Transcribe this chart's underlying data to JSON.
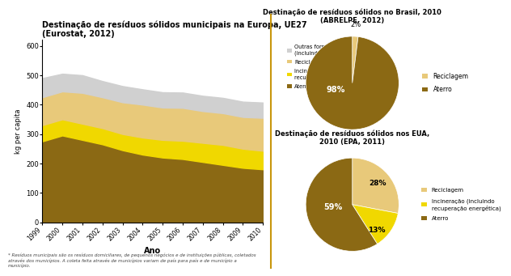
{
  "area_title": "Destinação de resíduos sólidos municipais na Europa, UE27\n(Eurostat, 2012)",
  "area_xlabel": "Ano",
  "area_ylabel": "kg per capita",
  "area_years": [
    1999,
    2000,
    2001,
    2002,
    2003,
    2004,
    2005,
    2006,
    2007,
    2008,
    2009,
    2010
  ],
  "area_aterro": [
    275,
    295,
    280,
    265,
    245,
    230,
    220,
    215,
    205,
    195,
    185,
    180
  ],
  "area_incinera": [
    55,
    55,
    55,
    55,
    55,
    58,
    60,
    62,
    65,
    68,
    65,
    63
  ],
  "area_recicla": [
    95,
    95,
    105,
    105,
    108,
    112,
    110,
    112,
    108,
    108,
    108,
    112
  ],
  "area_outras": [
    65,
    60,
    60,
    55,
    55,
    52,
    52,
    52,
    52,
    52,
    52,
    52
  ],
  "area_colors": [
    "#8B6914",
    "#F0D800",
    "#E8C97A",
    "#D0D0D0"
  ],
  "area_labels": [
    "Aterro",
    "Incineração (incluindo\nrecuperação energética)",
    "Reciclagem",
    "Outras formas de reciclagem\n(incluindo compostagem)"
  ],
  "area_ylim": [
    0,
    620
  ],
  "area_yticks": [
    0,
    100,
    200,
    300,
    400,
    500,
    600
  ],
  "footnote": "* Resíduos municipais são os resíduos domiciliares, de pequenos negócios e de instituições públicas, coletados\natravés dos municípios. A coleta feita através de municípios variam de país para país e de município a\nmunicípio.",
  "pie1_title": "Destinação de resíduos sólidos no Brasil, 2010\n(ABRELPE, 2012)",
  "pie1_values": [
    2,
    98
  ],
  "pie1_labels": [
    "Reciclagem",
    "Aterro"
  ],
  "pie1_colors": [
    "#E8C97A",
    "#8B6914"
  ],
  "pie1_pct_labels": [
    "2%",
    "98%"
  ],
  "pie2_title": "Destinação de resíduos sólidos nos EUA,\n2010 (EPA, 2011)",
  "pie2_values": [
    28,
    13,
    59
  ],
  "pie2_labels": [
    "Reciclagem",
    "Incineração (incluindo\nrecuperação energética)",
    "Aterro"
  ],
  "pie2_colors": [
    "#E8C97A",
    "#F0D800",
    "#8B6914"
  ],
  "pie2_pct_labels": [
    "28%",
    "13%",
    "59%"
  ],
  "divider_color": "#C8960C",
  "bg_color": "#FFFFFF"
}
